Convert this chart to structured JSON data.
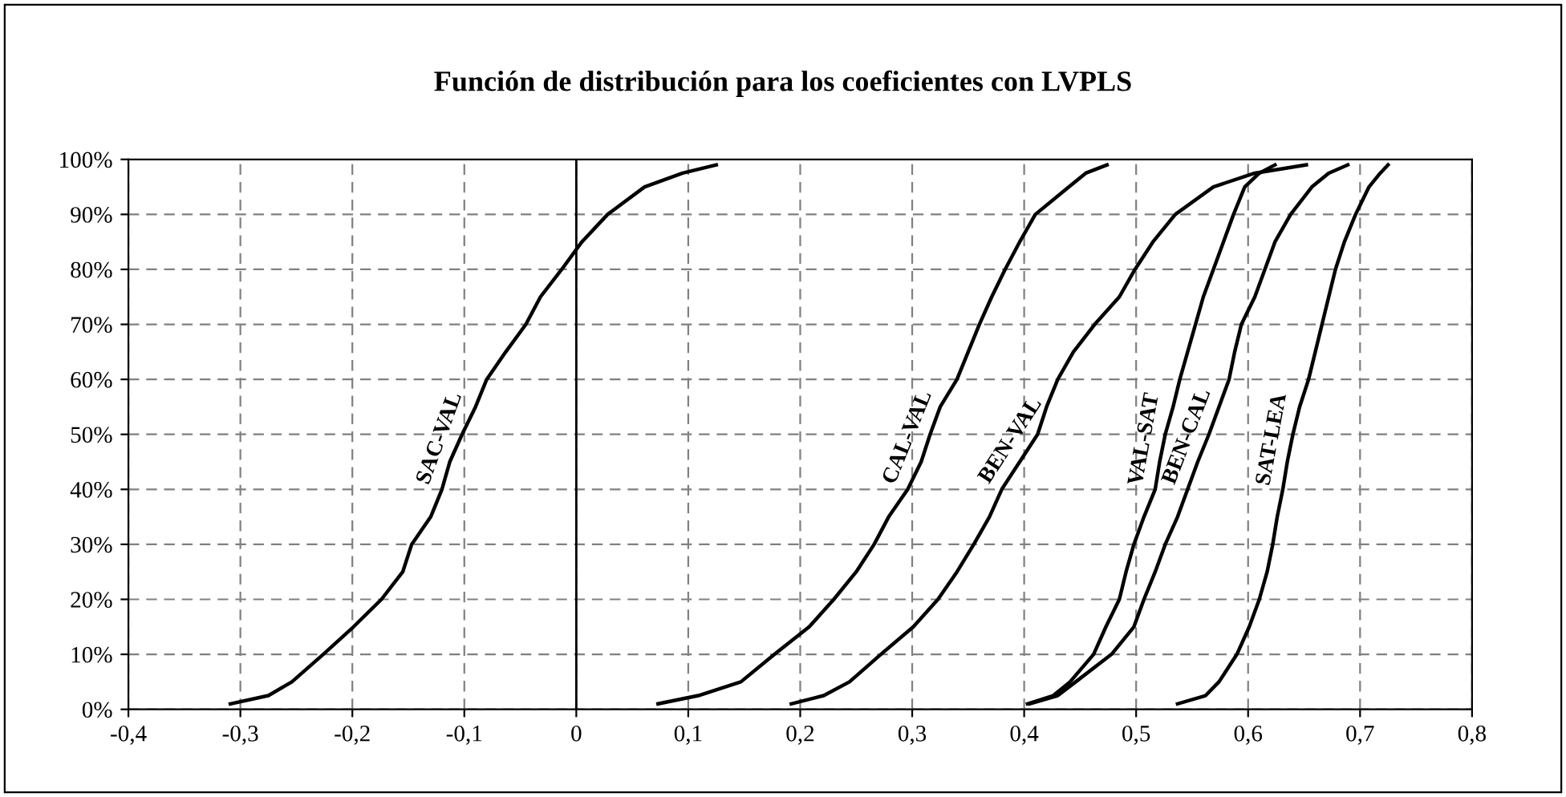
{
  "chart_data": {
    "type": "line",
    "title": "Función de distribución para los coeficientes con LVPLS",
    "series": [
      {
        "name": "SAC-VAL",
        "color": "#000000",
        "x": [
          -0.309,
          -0.275,
          -0.254,
          -0.226,
          -0.199,
          -0.174,
          -0.155,
          -0.147,
          -0.13,
          -0.12,
          -0.113,
          -0.102,
          -0.09,
          -0.08,
          -0.063,
          -0.045,
          -0.032,
          -0.013,
          0.005,
          0.028,
          0.061,
          0.095,
          0.125
        ],
        "values": [
          1,
          2.5,
          5,
          10,
          15,
          20,
          25,
          30,
          35,
          40,
          45,
          50,
          55,
          60,
          65,
          70,
          75,
          80,
          85,
          90,
          95,
          97.5,
          99
        ]
      },
      {
        "name": "CAL-VAL",
        "color": "#000000",
        "x": [
          0.073,
          0.109,
          0.147,
          0.177,
          0.208,
          0.23,
          0.25,
          0.266,
          0.279,
          0.296,
          0.308,
          0.316,
          0.325,
          0.34,
          0.35,
          0.36,
          0.371,
          0.383,
          0.396,
          0.41,
          0.44,
          0.455,
          0.474
        ],
        "values": [
          1,
          2.5,
          5,
          10,
          15,
          20,
          25,
          30,
          35,
          40,
          45,
          50,
          55,
          60,
          65,
          70,
          75,
          80,
          85,
          90,
          95,
          97.5,
          99
        ]
      },
      {
        "name": "BEN-VAL",
        "color": "#000000",
        "x": [
          0.192,
          0.221,
          0.244,
          0.272,
          0.301,
          0.323,
          0.34,
          0.355,
          0.369,
          0.38,
          0.396,
          0.412,
          0.42,
          0.43,
          0.444,
          0.463,
          0.485,
          0.499,
          0.515,
          0.535,
          0.569,
          0.606,
          0.652
        ],
        "values": [
          1,
          2.5,
          5,
          10,
          15,
          20,
          25,
          30,
          35,
          40,
          45,
          50,
          55,
          60,
          65,
          70,
          75,
          80,
          85,
          90,
          95,
          97.5,
          99
        ]
      },
      {
        "name": "VAL-SAT",
        "color": "#000000",
        "x": [
          0.403,
          0.426,
          0.441,
          0.462,
          0.473,
          0.485,
          0.491,
          0.498,
          0.507,
          0.517,
          0.521,
          0.526,
          0.533,
          0.539,
          0.546,
          0.553,
          0.56,
          0.569,
          0.578,
          0.587,
          0.597,
          0.61,
          0.624
        ],
        "values": [
          1,
          2.5,
          5,
          10,
          15,
          20,
          25,
          30,
          35,
          40,
          45,
          50,
          55,
          60,
          65,
          70,
          75,
          80,
          85,
          90,
          95,
          97.5,
          99
        ]
      },
      {
        "name": "BEN-CAL",
        "color": "#000000",
        "x": [
          0.405,
          0.43,
          0.446,
          0.478,
          0.498,
          0.507,
          0.517,
          0.526,
          0.537,
          0.546,
          0.555,
          0.565,
          0.574,
          0.583,
          0.588,
          0.594,
          0.606,
          0.615,
          0.624,
          0.638,
          0.657,
          0.672,
          0.689
        ],
        "values": [
          1,
          2.5,
          5,
          10,
          15,
          20,
          25,
          30,
          35,
          40,
          45,
          50,
          55,
          60,
          65,
          70,
          75,
          80,
          85,
          90,
          95,
          97.5,
          99
        ]
      },
      {
        "name": "SAT-LEA",
        "color": "#000000",
        "x": [
          0.537,
          0.562,
          0.574,
          0.59,
          0.601,
          0.61,
          0.617,
          0.622,
          0.626,
          0.631,
          0.635,
          0.64,
          0.646,
          0.654,
          0.66,
          0.666,
          0.672,
          0.678,
          0.686,
          0.696,
          0.708,
          0.718,
          0.725
        ],
        "values": [
          1,
          2.5,
          5,
          10,
          15,
          20,
          25,
          30,
          35,
          40,
          45,
          50,
          55,
          60,
          65,
          70,
          75,
          80,
          85,
          90,
          95,
          97.5,
          99
        ]
      }
    ],
    "xlim": [
      -0.4,
      0.8
    ],
    "xticks": [
      {
        "value": -0.4,
        "label": "-0,4"
      },
      {
        "value": -0.3,
        "label": "-0,3"
      },
      {
        "value": -0.2,
        "label": "-0,2"
      },
      {
        "value": -0.1,
        "label": "-0,1"
      },
      0,
      {
        "value": 0.1,
        "label": "0,1"
      },
      {
        "value": 0.2,
        "label": "0,2"
      },
      {
        "value": 0.3,
        "label": "0,3"
      },
      {
        "value": 0.4,
        "label": "0,4"
      },
      {
        "value": 0.5,
        "label": "0,5"
      },
      {
        "value": 0.6,
        "label": "0,6"
      },
      {
        "value": 0.7,
        "label": "0,7"
      },
      {
        "value": 0.8,
        "label": "0,8"
      }
    ],
    "ylim": [
      0,
      100
    ],
    "yticks": [
      {
        "value": 0,
        "label": "0%"
      },
      {
        "value": 10,
        "label": "10%"
      },
      {
        "value": 20,
        "label": "20%"
      },
      {
        "value": 30,
        "label": "30%"
      },
      {
        "value": 40,
        "label": "40%"
      },
      {
        "value": 50,
        "label": "50%"
      },
      {
        "value": 60,
        "label": "60%"
      },
      {
        "value": 70,
        "label": "70%"
      },
      {
        "value": 80,
        "label": "80%"
      },
      {
        "value": 90,
        "label": "90%"
      },
      {
        "value": 100,
        "label": "100%"
      }
    ],
    "ref_lines": [
      {
        "axis": "x",
        "value": 0,
        "color": "#000000",
        "line_style": "solid"
      }
    ],
    "grid": true,
    "marker": "none",
    "line_style": "solid",
    "legend": false
  }
}
